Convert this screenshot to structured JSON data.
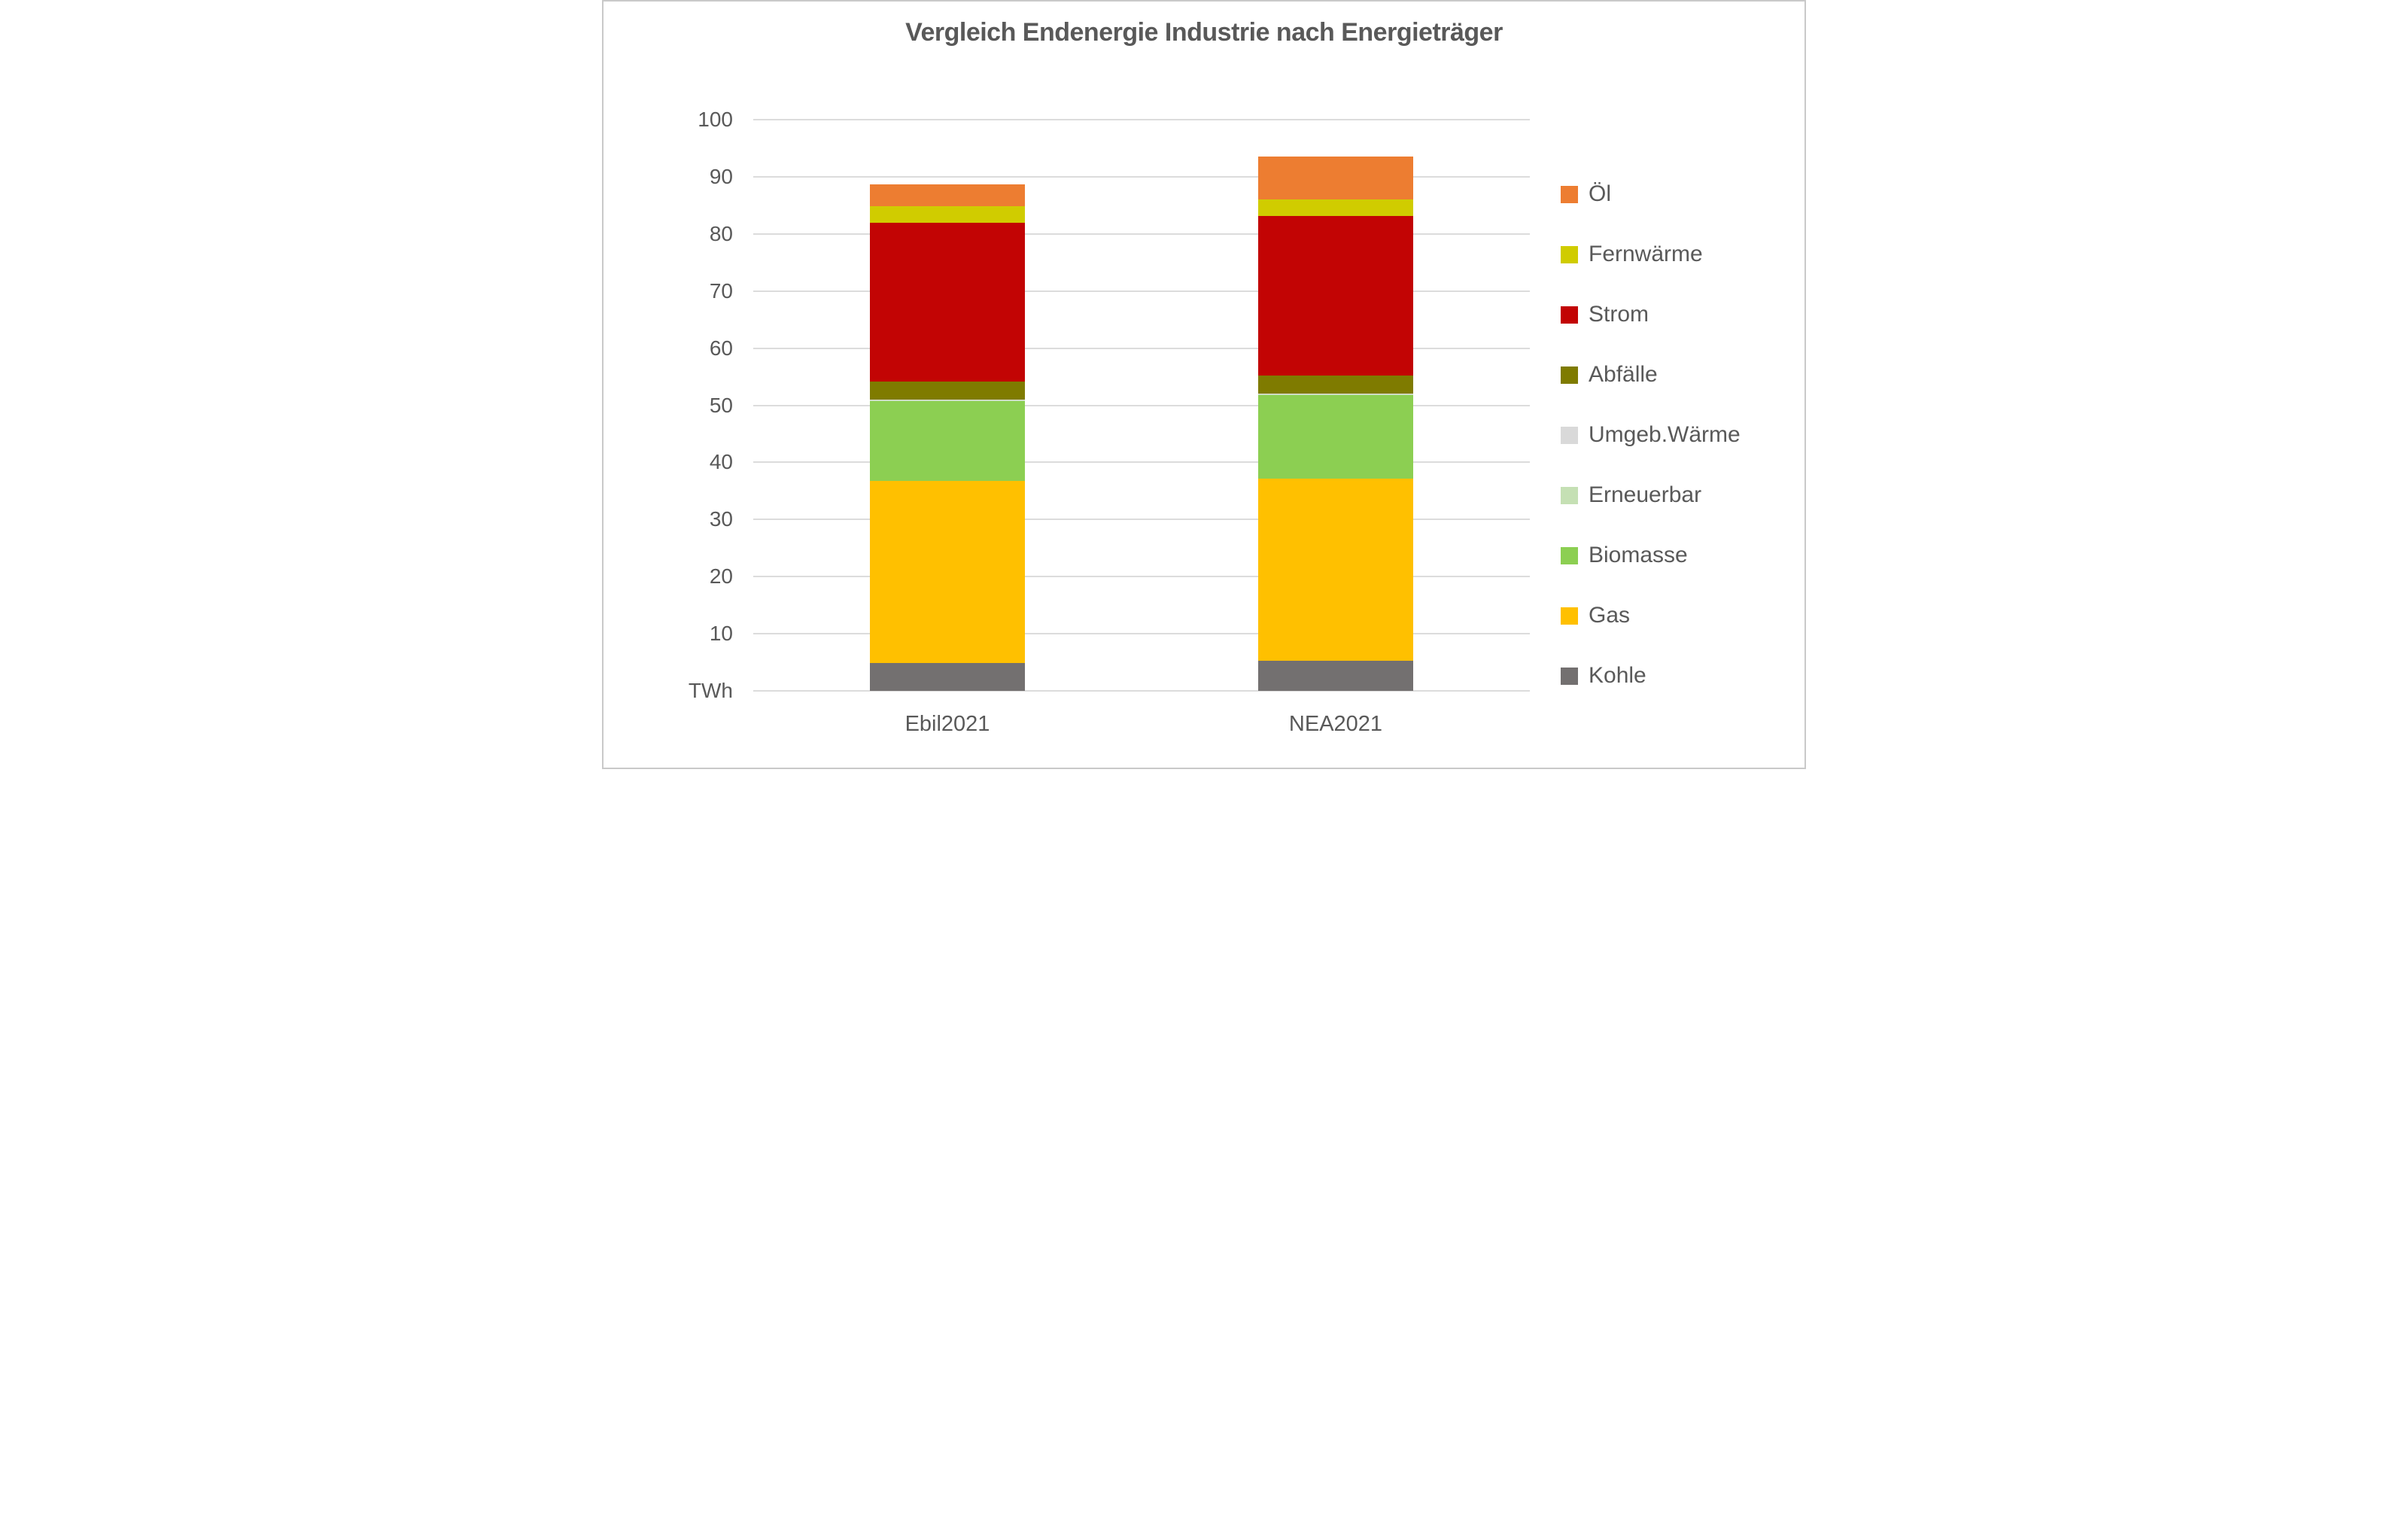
{
  "title": "Vergleich Endenergie Industrie nach Energieträger",
  "axis": {
    "unit_label": "TWh",
    "tick_step": 10,
    "tick_labels": [
      "TWh",
      "10",
      "20",
      "30",
      "40",
      "50",
      "60",
      "70",
      "80",
      "90",
      "100"
    ]
  },
  "colors": {
    "text": "#595959",
    "gridline": "#dcdcdc",
    "frame_border": "#c9c9c9",
    "background": "#ffffff"
  },
  "chart_data": {
    "type": "bar",
    "stacked": true,
    "title": "Vergleich Endenergie Industrie nach Energieträger",
    "xlabel": "",
    "ylabel": "TWh",
    "ylim": [
      0,
      100
    ],
    "grid": true,
    "legend_position": "right",
    "categories": [
      "Ebil2021",
      "NEA2021"
    ],
    "series": [
      {
        "name": "Kohle",
        "color": "#737070",
        "values": [
          4.9,
          5.3
        ]
      },
      {
        "name": "Gas",
        "color": "#ffc000",
        "values": [
          31.8,
          31.9
        ]
      },
      {
        "name": "Biomasse",
        "color": "#8ccf52",
        "values": [
          14.0,
          14.6
        ]
      },
      {
        "name": "Erneuerbar",
        "color": "#c5e0b4",
        "values": [
          0.2,
          0.2
        ]
      },
      {
        "name": "Umgeb.Wärme",
        "color": "#d9d9d9",
        "values": [
          0.1,
          0.1
        ]
      },
      {
        "name": "Abfälle",
        "color": "#7f7b00",
        "values": [
          3.2,
          3.1
        ]
      },
      {
        "name": "Strom",
        "color": "#c20404",
        "values": [
          27.8,
          27.9
        ]
      },
      {
        "name": "Fernwärme",
        "color": "#d0cc00",
        "values": [
          2.9,
          2.9
        ]
      },
      {
        "name": "Öl",
        "color": "#ed7d31",
        "values": [
          3.8,
          7.5
        ]
      }
    ],
    "totals": [
      88.7,
      93.5
    ],
    "legend_order_top_to_bottom": [
      "Öl",
      "Fernwärme",
      "Strom",
      "Abfälle",
      "Umgeb.Wärme",
      "Erneuerbar",
      "Biomasse",
      "Gas",
      "Kohle"
    ]
  }
}
